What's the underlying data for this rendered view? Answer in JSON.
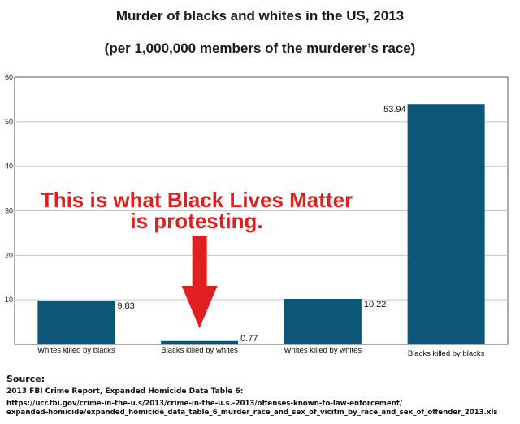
{
  "chart_data": {
    "type": "bar",
    "title": "Murder of blacks and whites in the US, 2013",
    "subtitle": "(per 1,000,000 members of the murderer’s race)",
    "categories": [
      "Whites killed by blacks",
      "Blacks killed by whites",
      "Whites killed by whites",
      "Blacks killed by blacks"
    ],
    "values": [
      9.83,
      0.77,
      10.22,
      53.94
    ],
    "data_labels": [
      "9.83",
      "0.77",
      "10.22",
      "53.94"
    ],
    "ylim": [
      0,
      60
    ],
    "yticks": [
      10,
      20,
      30,
      40,
      50,
      60
    ],
    "ytick_labels": [
      "10",
      "20",
      "30",
      "40",
      "50",
      "60"
    ],
    "xlabel": "",
    "ylabel": "",
    "grid": true,
    "legend": "none",
    "bar_color": "#0b5577",
    "annotation": {
      "lines": [
        "This is what Black Lives Matter",
        "is protesting."
      ],
      "color": "#e02020",
      "arrow_target_category": "Blacks killed by whites"
    }
  },
  "source": {
    "heading": "Source:",
    "line1": "2013 FBI Crime Report, Expanded Homicide Data Table 6:",
    "url_line1": "https://ucr.fbi.gov/crime-in-the-u.s/2013/crime-in-the-u.s.-2013/offenses-known-to-law-enforcement/",
    "url_line2": "expanded-homicide/expanded_homicide_data_table_6_murder_race_and_sex_of_vicitm_by_race_and_sex_of_offender_2013.xls"
  }
}
